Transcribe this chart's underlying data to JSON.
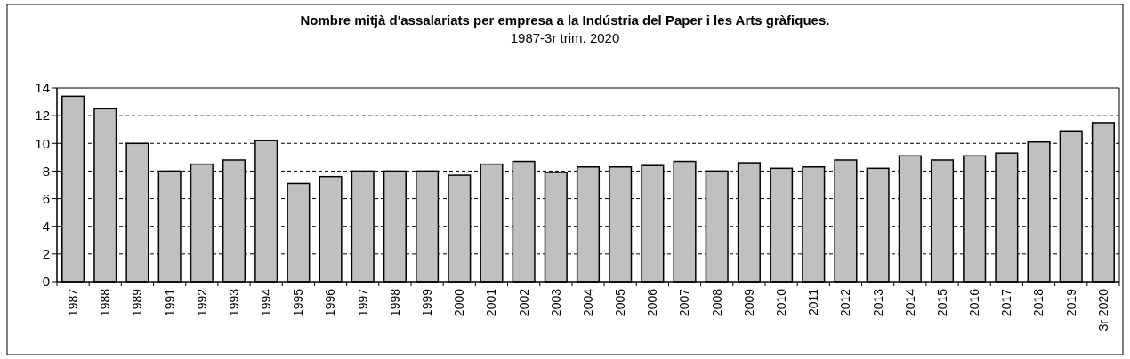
{
  "chart_data": {
    "type": "bar",
    "title": "Nombre mitjà d'assalariats per empresa a la Indústria del Paper i les Arts gràfiques.",
    "subtitle": "1987-3r trim. 2020",
    "categories": [
      "1987",
      "1988",
      "1989",
      "1991",
      "1992",
      "1993",
      "1994",
      "1995",
      "1996",
      "1997",
      "1998",
      "1999",
      "2000",
      "2001",
      "2002",
      "2003",
      "2004",
      "2005",
      "2006",
      "2007",
      "2008",
      "2009",
      "2010",
      "2011",
      "2012",
      "2013",
      "2014",
      "2015",
      "2016",
      "2017",
      "2018",
      "2019",
      "3r 2020"
    ],
    "values": [
      13.4,
      12.5,
      10.0,
      8.0,
      8.5,
      8.8,
      10.2,
      7.1,
      7.6,
      8.0,
      8.0,
      8.0,
      7.7,
      8.5,
      8.7,
      7.9,
      8.3,
      8.3,
      8.4,
      8.7,
      8.0,
      8.6,
      8.2,
      8.3,
      8.8,
      8.2,
      9.1,
      8.8,
      9.1,
      9.3,
      10.1,
      10.9,
      11.5
    ],
    "color": "#c0c0c0",
    "ylim": [
      0,
      14
    ],
    "yticks": [
      0,
      2,
      4,
      6,
      8,
      10,
      12,
      14
    ],
    "grid": "y"
  }
}
